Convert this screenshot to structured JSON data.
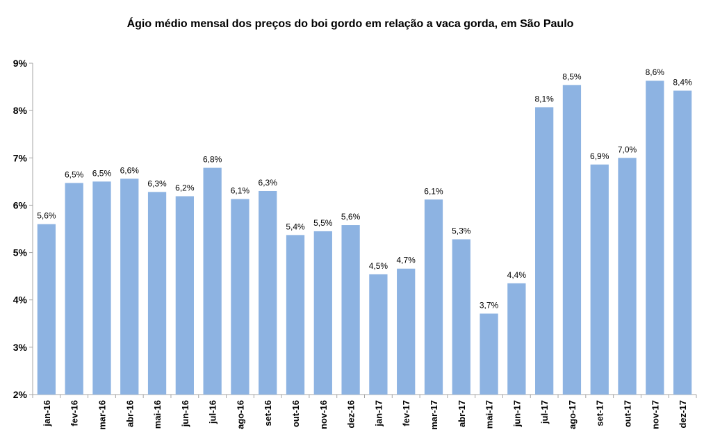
{
  "chart_data": {
    "type": "bar",
    "title": "Ágio médio mensal dos preços do boi gordo em relação a vaca gorda, em São Paulo",
    "xlabel": "",
    "ylabel": "",
    "ylim": [
      2,
      9
    ],
    "y_unit": "%",
    "yticks": [
      2,
      3,
      4,
      5,
      6,
      7,
      8,
      9
    ],
    "ytick_labels": [
      "2%",
      "3%",
      "4%",
      "5%",
      "6%",
      "7%",
      "8%",
      "9%"
    ],
    "grid": false,
    "legend": "none",
    "bar_color": "#8DB3E2",
    "axis_color": "#A6A6A6",
    "categories": [
      "jan-16",
      "fev-16",
      "mar-16",
      "abr-16",
      "mai-16",
      "jun-16",
      "jul-16",
      "ago-16",
      "set-16",
      "out-16",
      "nov-16",
      "dez-16",
      "jan-17",
      "fev-17",
      "mar-17",
      "abr-17",
      "mai-17",
      "jun-17",
      "jul-17",
      "ago-17",
      "set-17",
      "out-17",
      "nov-17",
      "dez-17"
    ],
    "values": [
      5.6,
      6.47,
      6.5,
      6.56,
      6.28,
      6.19,
      6.79,
      6.13,
      6.3,
      5.37,
      5.45,
      5.58,
      4.54,
      4.66,
      6.12,
      5.28,
      3.71,
      4.35,
      8.07,
      8.54,
      6.86,
      7.0,
      8.63,
      8.42
    ],
    "data_labels": [
      "5,6%",
      "6,5%",
      "6,5%",
      "6,6%",
      "6,3%",
      "6,2%",
      "6,8%",
      "6,1%",
      "6,3%",
      "5,4%",
      "5,5%",
      "5,6%",
      "4,5%",
      "4,7%",
      "6,1%",
      "5,3%",
      "3,7%",
      "4,4%",
      "8,1%",
      "8,5%",
      "6,9%",
      "7,0%",
      "8,6%",
      "8,4%"
    ]
  }
}
